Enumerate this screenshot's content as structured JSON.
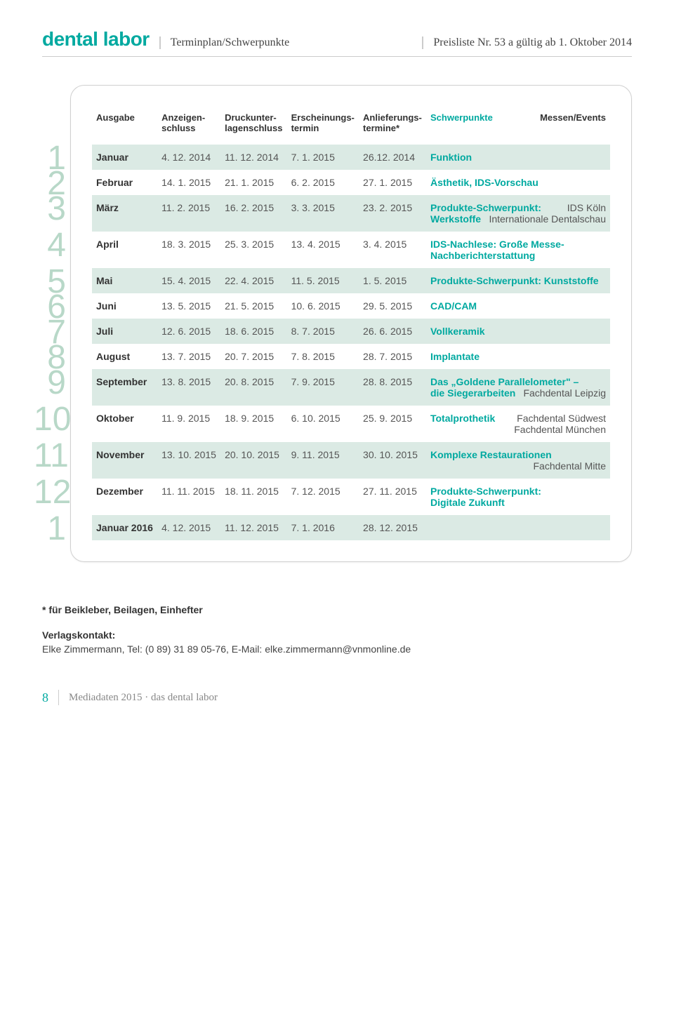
{
  "header": {
    "logo": "dental labor",
    "section": "Terminplan/Schwerpunkte",
    "pricelist": "Preisliste Nr. 53 a gültig ab 1. Oktober 2014"
  },
  "columns": {
    "c0": "Ausgabe",
    "c1a": "Anzeigen-",
    "c1b": "schluss",
    "c2a": "Druckunter-",
    "c2b": "lagenschluss",
    "c3a": "Erscheinungs-",
    "c3b": "termin",
    "c4a": "Anlieferungs-",
    "c4b": "termine*",
    "c5": "Schwerpunkte",
    "c6": "Messen/Events"
  },
  "rows": [
    {
      "num": "1",
      "shade": true,
      "month": "Januar",
      "d1": "4. 12. 2014",
      "d2": "11. 12. 2014",
      "d3": "7. 1. 2015",
      "d4": "26.12. 2014",
      "focus": "Funktion",
      "focus2": "",
      "events": "",
      "events2": ""
    },
    {
      "num": "2",
      "shade": false,
      "month": "Februar",
      "d1": "14. 1. 2015",
      "d2": "21. 1. 2015",
      "d3": "6. 2. 2015",
      "d4": "27. 1. 2015",
      "focus": "Ästhetik, IDS-Vorschau",
      "focus2": "",
      "events": "",
      "events2": ""
    },
    {
      "num": "3",
      "shade": true,
      "month": "März",
      "d1": "11. 2. 2015",
      "d2": "16. 2. 2015",
      "d3": "3. 3. 2015",
      "d4": "23. 2. 2015",
      "focus": "Produkte-Schwerpunkt:",
      "focus2": "Werkstoffe",
      "events": "IDS Köln",
      "events2": "Internationale Dentalschau"
    },
    {
      "num": "4",
      "shade": false,
      "month": "April",
      "d1": "18. 3. 2015",
      "d2": "25. 3. 2015",
      "d3": "13. 4. 2015",
      "d4": "3. 4. 2015",
      "focus": "IDS-Nachlese: Große Messe-",
      "focus2": "Nachberichterstattung",
      "events": "",
      "events2": ""
    },
    {
      "num": "5",
      "shade": true,
      "month": "Mai",
      "d1": "15. 4. 2015",
      "d2": "22. 4. 2015",
      "d3": "11. 5. 2015",
      "d4": "1. 5. 2015",
      "focus": "Produkte-Schwerpunkt: Kunststoffe",
      "focus2": "",
      "events": "",
      "events2": ""
    },
    {
      "num": "6",
      "shade": false,
      "month": "Juni",
      "d1": "13. 5. 2015",
      "d2": "21. 5. 2015",
      "d3": "10. 6. 2015",
      "d4": "29. 5. 2015",
      "focus": "CAD/CAM",
      "focus2": "",
      "events": "",
      "events2": ""
    },
    {
      "num": "7",
      "shade": true,
      "month": "Juli",
      "d1": "12. 6. 2015",
      "d2": "18. 6. 2015",
      "d3": "8. 7. 2015",
      "d4": "26. 6. 2015",
      "focus": "Vollkeramik",
      "focus2": "",
      "events": "",
      "events2": ""
    },
    {
      "num": "8",
      "shade": false,
      "month": "August",
      "d1": "13. 7. 2015",
      "d2": "20. 7. 2015",
      "d3": "7. 8. 2015",
      "d4": "28. 7. 2015",
      "focus": "Implantate",
      "focus2": "",
      "events": "",
      "events2": ""
    },
    {
      "num": "9",
      "shade": true,
      "month": "September",
      "d1": "13. 8. 2015",
      "d2": "20. 8. 2015",
      "d3": "7. 9. 2015",
      "d4": "28. 8. 2015",
      "focus": "Das „Goldene Parallelometer\" –",
      "focus2": "die Siegerarbeiten",
      "events": "",
      "events2": "Fachdental Leipzig"
    },
    {
      "num": "10",
      "shade": false,
      "month": "Oktober",
      "d1": "11. 9. 2015",
      "d2": "18. 9. 2015",
      "d3": "6. 10. 2015",
      "d4": "25. 9. 2015",
      "focus": "Totalprothetik",
      "focus2": "",
      "events": "Fachdental Südwest",
      "events2": "Fachdental München"
    },
    {
      "num": "11",
      "shade": true,
      "month": "November",
      "d1": "13. 10. 2015",
      "d2": "20. 10. 2015",
      "d3": "9. 11. 2015",
      "d4": "30. 10. 2015",
      "focus": "Komplexe Restaurationen",
      "focus2": "",
      "events": "",
      "events2": "Fachdental Mitte"
    },
    {
      "num": "12",
      "shade": false,
      "month": "Dezember",
      "d1": "11. 11. 2015",
      "d2": "18. 11. 2015",
      "d3": "7. 12. 2015",
      "d4": "27. 11. 2015",
      "focus": "Produkte-Schwerpunkt:",
      "focus2": "Digitale Zukunft",
      "events": "",
      "events2": ""
    },
    {
      "num": "1",
      "shade": true,
      "month": "Januar 2016",
      "d1": "4. 12. 2015",
      "d2": "11. 12. 2015",
      "d3": "7. 1. 2016",
      "d4": "28. 12. 2015",
      "focus": "",
      "focus2": "",
      "events": "",
      "events2": ""
    }
  ],
  "footnote": "* für Beikleber, Beilagen, Einhefter",
  "contact": {
    "title": "Verlagskontakt:",
    "line": "Elke Zimmermann, Tel: (0 89) 31 89 05-76, E-Mail: elke.zimmermann@vnmonline.de"
  },
  "footer": {
    "page": "8",
    "text": "Mediadaten 2015 · das dental labor"
  },
  "colors": {
    "accent": "#00a9a0",
    "shade": "#dbeae4",
    "numtint": "#b8d8c8"
  }
}
